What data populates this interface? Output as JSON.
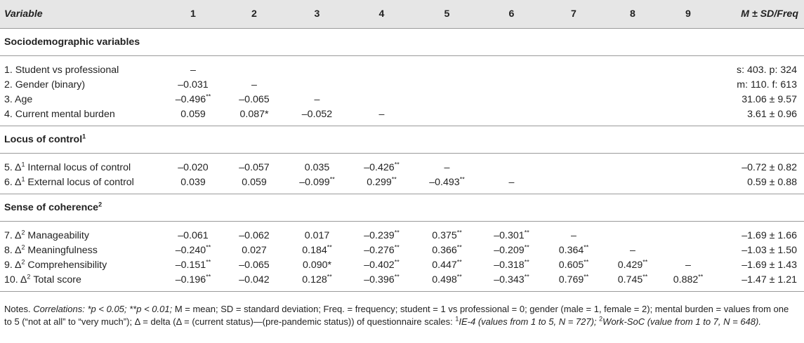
{
  "table": {
    "header": {
      "variable": "Variable",
      "cols": [
        "1",
        "2",
        "3",
        "4",
        "5",
        "6",
        "7",
        "8",
        "9"
      ],
      "msd": "M ± SD/Freq"
    },
    "sections": [
      {
        "title": "Sociodemographic variables",
        "title_sup": "",
        "rows": [
          {
            "label": "1. Student vs professional",
            "delta": "",
            "cells": [
              {
                "v": "–",
                "s": ""
              },
              {
                "v": "",
                "s": ""
              },
              {
                "v": "",
                "s": ""
              },
              {
                "v": "",
                "s": ""
              },
              {
                "v": "",
                "s": ""
              },
              {
                "v": "",
                "s": ""
              },
              {
                "v": "",
                "s": ""
              },
              {
                "v": "",
                "s": ""
              },
              {
                "v": "",
                "s": ""
              }
            ],
            "msd": "s: 403. p: 324"
          },
          {
            "label": "2. Gender (binary)",
            "delta": "",
            "cells": [
              {
                "v": "–0.031",
                "s": ""
              },
              {
                "v": "–",
                "s": ""
              },
              {
                "v": "",
                "s": ""
              },
              {
                "v": "",
                "s": ""
              },
              {
                "v": "",
                "s": ""
              },
              {
                "v": "",
                "s": ""
              },
              {
                "v": "",
                "s": ""
              },
              {
                "v": "",
                "s": ""
              },
              {
                "v": "",
                "s": ""
              }
            ],
            "msd": "m: 110. f: 613"
          },
          {
            "label": "3. Age",
            "delta": "",
            "cells": [
              {
                "v": "–0.496",
                "s": "**"
              },
              {
                "v": "–0.065",
                "s": ""
              },
              {
                "v": "–",
                "s": ""
              },
              {
                "v": "",
                "s": ""
              },
              {
                "v": "",
                "s": ""
              },
              {
                "v": "",
                "s": ""
              },
              {
                "v": "",
                "s": ""
              },
              {
                "v": "",
                "s": ""
              },
              {
                "v": "",
                "s": ""
              }
            ],
            "msd": "31.06 ± 9.57"
          },
          {
            "label": "4. Current mental burden",
            "delta": "",
            "cells": [
              {
                "v": "0.059",
                "s": ""
              },
              {
                "v": "0.087*",
                "s": ""
              },
              {
                "v": "–0.052",
                "s": ""
              },
              {
                "v": "–",
                "s": ""
              },
              {
                "v": "",
                "s": ""
              },
              {
                "v": "",
                "s": ""
              },
              {
                "v": "",
                "s": ""
              },
              {
                "v": "",
                "s": ""
              },
              {
                "v": "",
                "s": ""
              }
            ],
            "msd": "3.61 ± 0.96"
          }
        ]
      },
      {
        "title": "Locus of control",
        "title_sup": "1",
        "rows": [
          {
            "label": "5. Δ",
            "delta": "1",
            "label_rest": " Internal locus of control",
            "cells": [
              {
                "v": "–0.020",
                "s": ""
              },
              {
                "v": "–0.057",
                "s": ""
              },
              {
                "v": "0.035",
                "s": ""
              },
              {
                "v": "–0.426",
                "s": "**"
              },
              {
                "v": "–",
                "s": ""
              },
              {
                "v": "",
                "s": ""
              },
              {
                "v": "",
                "s": ""
              },
              {
                "v": "",
                "s": ""
              },
              {
                "v": "",
                "s": ""
              }
            ],
            "msd": "–0.72 ± 0.82"
          },
          {
            "label": "6. Δ",
            "delta": "1",
            "label_rest": " External locus of control",
            "cells": [
              {
                "v": "0.039",
                "s": ""
              },
              {
                "v": "0.059",
                "s": ""
              },
              {
                "v": "–0.099",
                "s": "**"
              },
              {
                "v": "0.299",
                "s": "**"
              },
              {
                "v": "–0.493",
                "s": "**"
              },
              {
                "v": "–",
                "s": ""
              },
              {
                "v": "",
                "s": ""
              },
              {
                "v": "",
                "s": ""
              },
              {
                "v": "",
                "s": ""
              }
            ],
            "msd": "0.59 ± 0.88"
          }
        ]
      },
      {
        "title": "Sense of coherence",
        "title_sup": "2",
        "rows": [
          {
            "label": "7. Δ",
            "delta": "2",
            "label_rest": " Manageability",
            "cells": [
              {
                "v": "–0.061",
                "s": ""
              },
              {
                "v": "–0.062",
                "s": ""
              },
              {
                "v": "0.017",
                "s": ""
              },
              {
                "v": "–0.239",
                "s": "**"
              },
              {
                "v": "0.375",
                "s": "**"
              },
              {
                "v": "–0.301",
                "s": "**"
              },
              {
                "v": "–",
                "s": ""
              },
              {
                "v": "",
                "s": ""
              },
              {
                "v": "",
                "s": ""
              }
            ],
            "msd": "–1.69 ± 1.66"
          },
          {
            "label": "8. Δ",
            "delta": "2",
            "label_rest": " Meaningfulness",
            "cells": [
              {
                "v": "–0.240",
                "s": "**"
              },
              {
                "v": "0.027",
                "s": ""
              },
              {
                "v": "0.184",
                "s": "**"
              },
              {
                "v": "–0.276",
                "s": "**"
              },
              {
                "v": "0.366",
                "s": "**"
              },
              {
                "v": "–0.209",
                "s": "**"
              },
              {
                "v": "0.364",
                "s": "**"
              },
              {
                "v": "–",
                "s": ""
              },
              {
                "v": "",
                "s": ""
              }
            ],
            "msd": "–1.03 ± 1.50"
          },
          {
            "label": "9. Δ",
            "delta": "2",
            "label_rest": " Comprehensibility",
            "cells": [
              {
                "v": "–0.151",
                "s": "**"
              },
              {
                "v": "–0.065",
                "s": ""
              },
              {
                "v": "0.090*",
                "s": ""
              },
              {
                "v": "–0.402",
                "s": "**"
              },
              {
                "v": "0.447",
                "s": "**"
              },
              {
                "v": "–0.318",
                "s": "**"
              },
              {
                "v": "0.605",
                "s": "**"
              },
              {
                "v": "0.429",
                "s": "**"
              },
              {
                "v": "–",
                "s": ""
              }
            ],
            "msd": "–1.69 ± 1.43"
          },
          {
            "label": "10. Δ",
            "delta": "2",
            "label_rest": " Total score",
            "cells": [
              {
                "v": "–0.196",
                "s": "**"
              },
              {
                "v": "–0.042",
                "s": ""
              },
              {
                "v": "0.128",
                "s": "**"
              },
              {
                "v": "–0.396",
                "s": "**"
              },
              {
                "v": "0.498",
                "s": "**"
              },
              {
                "v": "–0.343",
                "s": "**"
              },
              {
                "v": "0.769",
                "s": "**"
              },
              {
                "v": "0.745",
                "s": "**"
              },
              {
                "v": "0.882",
                "s": "**"
              }
            ],
            "msd": "–1.47 ± 1.21"
          }
        ]
      }
    ]
  },
  "notes": {
    "prefix": "Notes. ",
    "p1": "Correlations: *p < 0.05; **p < 0.01; ",
    "p2": "M = mean; SD = standard deviation; Freq. = frequency; student = 1 vs professional = 0; gender (male = 1, female = 2); mental burden = values from one to 5 (“not at all” to “very much”); Δ = delta (Δ = (current status)—(pre-pandemic status)) of questionnaire scales: ",
    "sup1": "1",
    "p3": "IE-4 (values from 1 to 5, N = 727); ",
    "sup2": "2",
    "p4": "Work-SoC (value from 1 to 7, N = 648)."
  },
  "colors": {
    "header_bg": "#e6e6e6",
    "rule": "#9a9a9a",
    "text": "#222222"
  }
}
